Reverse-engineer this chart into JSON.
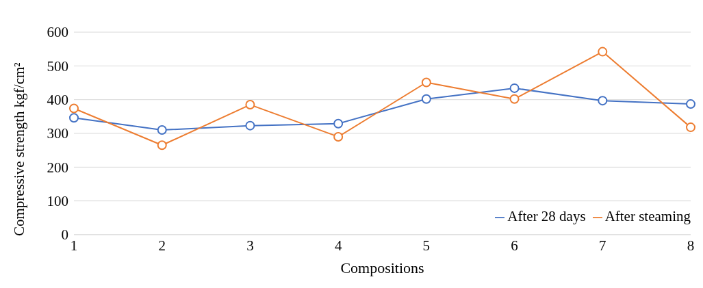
{
  "chart_data": {
    "type": "line",
    "xlabel": "Compositions",
    "ylabel": "Compressive strength kgf/cm²",
    "categories": [
      "1",
      "2",
      "3",
      "4",
      "5",
      "6",
      "7",
      "8"
    ],
    "series": [
      {
        "name": "After 28 days",
        "color": "#4472c4",
        "values": [
          346,
          310,
          323,
          329,
          402,
          434,
          397,
          387
        ]
      },
      {
        "name": "After steaming",
        "color": "#ed7d31",
        "values": [
          374,
          265,
          385,
          290,
          451,
          402,
          542,
          318
        ]
      }
    ],
    "ylim": [
      0,
      600
    ],
    "yticks": [
      0,
      100,
      200,
      300,
      400,
      500,
      600
    ],
    "grid": "y",
    "legend": "bottom right",
    "marker": "circle",
    "line_style": "solid"
  }
}
